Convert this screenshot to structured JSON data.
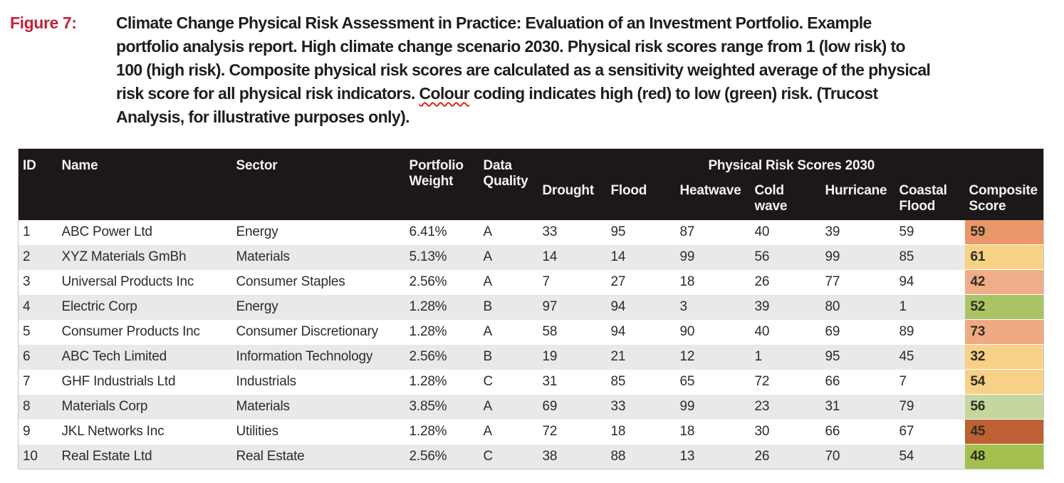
{
  "figure": {
    "label": "Figure 7:",
    "caption_before": "Climate Change Physical Risk Assessment in Practice: Evaluation of an Investment Portfolio. Example\nportfolio analysis report. High climate change scenario 2030. Physical risk scores range from 1 (low risk) to\n100 (high risk). Composite physical risk scores are calculated as a sensitivity weighted average of the physical\nrisk score for all physical risk indicators. ",
    "misspelled_word": "Colour",
    "caption_after": " coding indicates high (red) to low (green) risk. (Trucost\nAnalysis, for illustrative purposes only)."
  },
  "colors": {
    "figure_label_red": "#c3223b",
    "spellcheck_squiggle_red": "#e0231c",
    "header_background": "#1c1719",
    "row_stripe_gray": "#e9e9e9",
    "risk_scale_note": "red = high risk, green = low risk"
  },
  "table": {
    "headers": {
      "id": "ID",
      "name": "Name",
      "sector": "Sector",
      "portfolio_weight": "Portfolio\nWeight",
      "data_quality": "Data\nQuality",
      "group": "Physical Risk Scores 2030",
      "drought": "Drought",
      "flood": "Flood",
      "heatwave": "Heatwave",
      "cold_wave": "Cold\nwave",
      "hurricane": "Hurricane",
      "coastal_flood": "Coastal\nFlood",
      "composite_score": "Composite\nScore"
    },
    "rows": [
      {
        "id": "1",
        "name": "ABC Power Ltd",
        "sector": "Energy",
        "weight": "6.41%",
        "quality": "A",
        "drought": "33",
        "flood": "95",
        "heatwave": "87",
        "cold_wave": "40",
        "hurricane": "39",
        "coastal_flood": "59",
        "composite": "59",
        "composite_color": "#e8976b"
      },
      {
        "id": "2",
        "name": "XYZ Materials GmBh",
        "sector": "Materials",
        "weight": "5.13%",
        "quality": "A",
        "drought": "14",
        "flood": "14",
        "heatwave": "99",
        "cold_wave": "56",
        "hurricane": "99",
        "coastal_flood": "85",
        "composite": "61",
        "composite_color": "#f6d285"
      },
      {
        "id": "3",
        "name": "Universal Products Inc",
        "sector": "Consumer Staples",
        "weight": "2.56%",
        "quality": "A",
        "drought": "7",
        "flood": "27",
        "heatwave": "18",
        "cold_wave": "26",
        "hurricane": "77",
        "coastal_flood": "94",
        "composite": "42",
        "composite_color": "#f0ae88"
      },
      {
        "id": "4",
        "name": "Electric Corp",
        "sector": "Energy",
        "weight": "1.28%",
        "quality": "B",
        "drought": "97",
        "flood": "94",
        "heatwave": "3",
        "cold_wave": "39",
        "hurricane": "80",
        "coastal_flood": "1",
        "composite": "52",
        "composite_color": "#a9c464"
      },
      {
        "id": "5",
        "name": "Consumer Products Inc",
        "sector": "Consumer Discretionary",
        "weight": "1.28%",
        "quality": "A",
        "drought": "58",
        "flood": "94",
        "heatwave": "90",
        "cold_wave": "40",
        "hurricane": "69",
        "coastal_flood": "89",
        "composite": "73",
        "composite_color": "#f0aa83"
      },
      {
        "id": "6",
        "name": "ABC Tech Limited",
        "sector": "Information Technology",
        "weight": "2.56%",
        "quality": "B",
        "drought": "19",
        "flood": "21",
        "heatwave": "12",
        "cold_wave": "1",
        "hurricane": "95",
        "coastal_flood": "45",
        "composite": "32",
        "composite_color": "#f6d187"
      },
      {
        "id": "7",
        "name": "GHF Industrials Ltd",
        "sector": "Industrials",
        "weight": "1.28%",
        "quality": "C",
        "drought": "31",
        "flood": "85",
        "heatwave": "65",
        "cold_wave": "72",
        "hurricane": "66",
        "coastal_flood": "7",
        "composite": "54",
        "composite_color": "#f6d187"
      },
      {
        "id": "8",
        "name": "Materials Corp",
        "sector": "Materials",
        "weight": "3.85%",
        "quality": "A",
        "drought": "69",
        "flood": "33",
        "heatwave": "99",
        "cold_wave": "23",
        "hurricane": "31",
        "coastal_flood": "79",
        "composite": "56",
        "composite_color": "#c4d79e"
      },
      {
        "id": "9",
        "name": "JKL Networks Inc",
        "sector": "Utilities",
        "weight": "1.28%",
        "quality": "A",
        "drought": "72",
        "flood": "18",
        "heatwave": "18",
        "cold_wave": "30",
        "hurricane": "66",
        "coastal_flood": "67",
        "composite": "45",
        "composite_color": "#bd6134"
      },
      {
        "id": "10",
        "name": "Real Estate Ltd",
        "sector": "Real Estate",
        "weight": "2.56%",
        "quality": "C",
        "drought": "38",
        "flood": "88",
        "heatwave": "13",
        "cold_wave": "26",
        "hurricane": "70",
        "coastal_flood": "54",
        "composite": "48",
        "composite_color": "#a3c04f"
      }
    ]
  }
}
